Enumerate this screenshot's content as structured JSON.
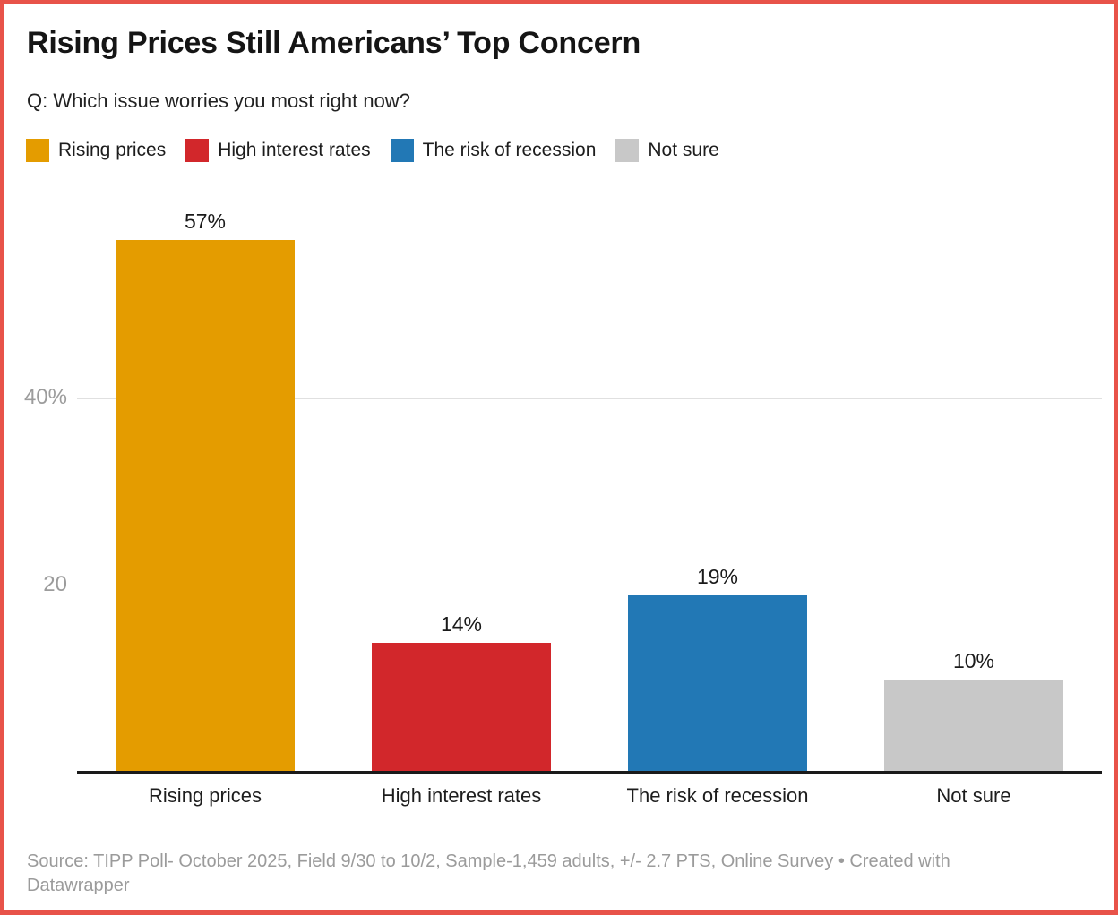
{
  "page": {
    "border_color": "#e85349",
    "background": "#ffffff"
  },
  "header": {
    "title": "Rising Prices Still Americans’ Top Concern",
    "subtitle": "Q: Which issue worries you most right now?"
  },
  "legend": {
    "position": "top",
    "items": [
      {
        "label": "Rising prices",
        "color": "#e49c00"
      },
      {
        "label": "High interest rates",
        "color": "#d2272b"
      },
      {
        "label": "The risk of recession",
        "color": "#2278b5"
      },
      {
        "label": "Not sure",
        "color": "#c8c8c8"
      }
    ]
  },
  "chart_data": {
    "type": "bar",
    "title": "Rising Prices Still Americans’ Top Concern",
    "subtitle": "Q: Which issue worries you most right now?",
    "categories": [
      "Rising prices",
      "High interest rates",
      "The risk of recession",
      "Not sure"
    ],
    "values": [
      57,
      14,
      19,
      10
    ],
    "value_labels": [
      "57%",
      "14%",
      "19%",
      "10%"
    ],
    "colors": [
      "#e49c00",
      "#d2272b",
      "#2278b5",
      "#c8c8c8"
    ],
    "ylabel": "",
    "xlabel": "",
    "ylim": [
      0,
      62
    ],
    "yticks": [
      {
        "value": 20,
        "label": "20"
      },
      {
        "value": 40,
        "label": "40%"
      }
    ],
    "grid": true,
    "legend_position": "top"
  },
  "footer": {
    "text": "Source: TIPP Poll- October 2025, Field 9/30 to 10/2, Sample-1,459 adults, +/- 2.7 PTS, Online Survey • Created with Datawrapper"
  }
}
